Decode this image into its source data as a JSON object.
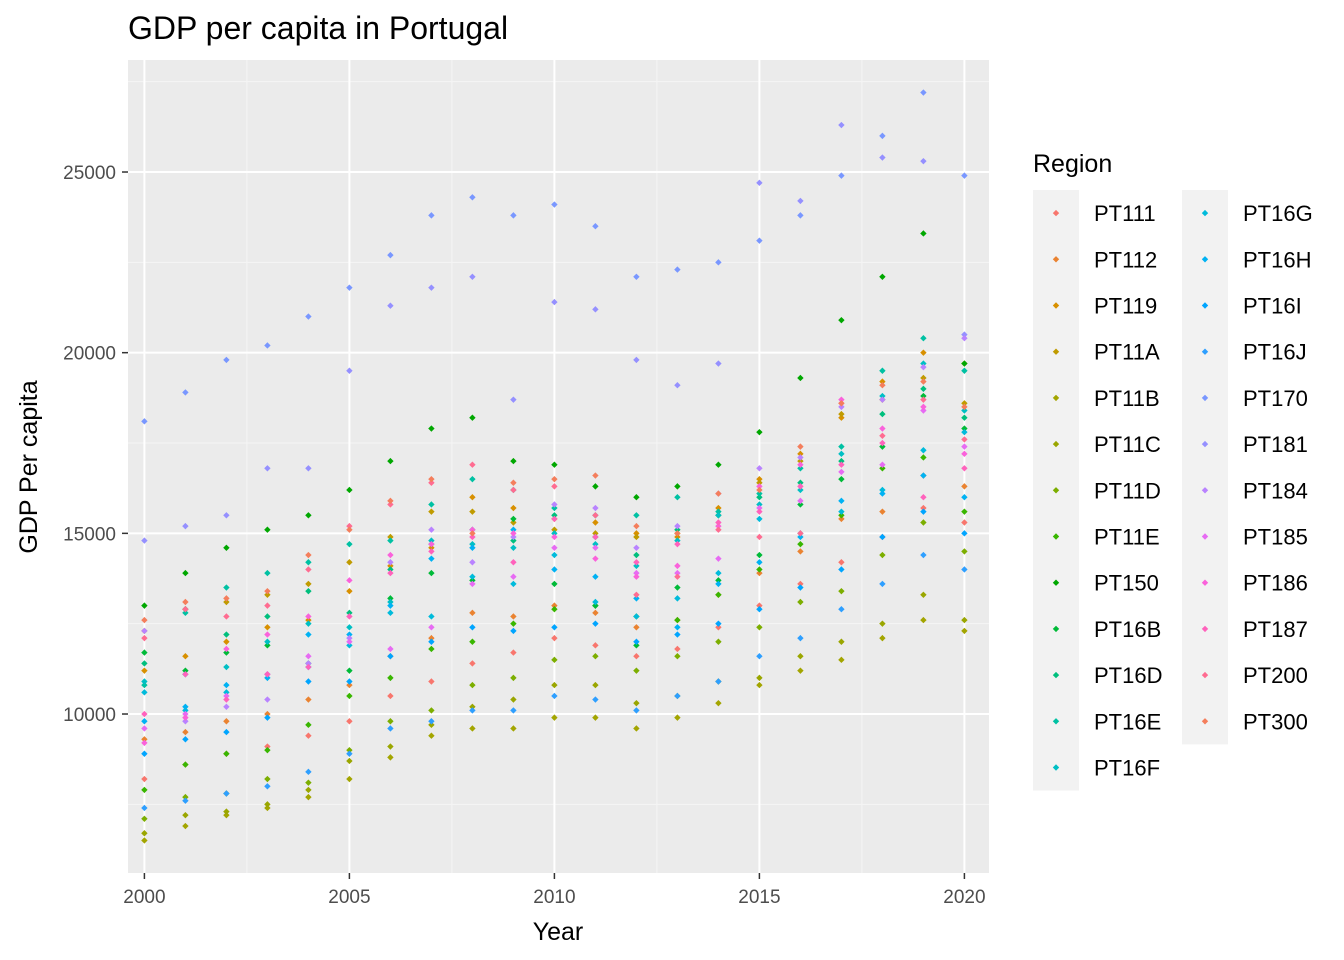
{
  "chart_data": {
    "type": "scatter",
    "title": "GDP per capita in Portugal",
    "xlabel": "Year",
    "ylabel": "GDP Per capita",
    "xlim": [
      1999.6,
      2020.6
    ],
    "ylim": [
      5600,
      28100
    ],
    "x_ticks": [
      2000,
      2005,
      2010,
      2015,
      2020
    ],
    "x_tick_labels": [
      "2000",
      "2005",
      "2010",
      "2015",
      "2020"
    ],
    "y_ticks": [
      10000,
      15000,
      20000,
      25000
    ],
    "y_tick_labels": [
      "10000",
      "15000",
      "20000",
      "25000"
    ],
    "grid": true,
    "legend_title": "Region",
    "legend_position": "right",
    "years": [
      2000,
      2001,
      2002,
      2003,
      2004,
      2005,
      2006,
      2007,
      2008,
      2009,
      2010,
      2011,
      2012,
      2013,
      2014,
      2015,
      2016,
      2017,
      2018,
      2019,
      2020
    ],
    "series": [
      {
        "name": "PT111",
        "color": "#F8766D",
        "values": [
          8200,
          8600,
          8900,
          9100,
          9400,
          9800,
          10500,
          10900,
          11400,
          11700,
          12100,
          11900,
          11600,
          11800,
          12400,
          13000,
          13600,
          14200,
          14900,
          15700,
          15300
        ]
      },
      {
        "name": "PT112",
        "color": "#EA8331",
        "values": [
          9300,
          9500,
          9800,
          10000,
          10400,
          10800,
          11600,
          12100,
          12800,
          12700,
          13000,
          12800,
          12400,
          12600,
          13300,
          13900,
          14500,
          15400,
          15600,
          16600,
          16300
        ]
      },
      {
        "name": "PT119",
        "color": "#D89000",
        "values": [
          11200,
          11600,
          12000,
          12400,
          12600,
          13400,
          14100,
          14600,
          16000,
          15700,
          15400,
          15300,
          15000,
          14900,
          15700,
          16500,
          17200,
          18200,
          19200,
          20000,
          19700
        ]
      },
      {
        "name": "PT11A",
        "color": "#C09B00",
        "values": [
          12300,
          12900,
          13100,
          13300,
          13600,
          14200,
          14900,
          15600,
          15600,
          15300,
          15100,
          15000,
          14900,
          15000,
          15500,
          16400,
          17000,
          18300,
          18700,
          19300,
          18600
        ]
      },
      {
        "name": "PT11B",
        "color": "#A3A500",
        "values": [
          6500,
          6900,
          7200,
          7400,
          7700,
          8200,
          8800,
          9400,
          9600,
          9600,
          9900,
          9900,
          9600,
          9900,
          10300,
          10800,
          11200,
          11500,
          12100,
          12600,
          12300
        ]
      },
      {
        "name": "PT11C",
        "color": "#9AA600",
        "values": [
          6700,
          7200,
          7300,
          7500,
          7900,
          8700,
          9100,
          9700,
          10200,
          10400,
          10800,
          10800,
          10300,
          10500,
          10900,
          11000,
          11600,
          12000,
          12500,
          13300,
          12600
        ]
      },
      {
        "name": "PT11D",
        "color": "#7CAE00",
        "values": [
          7100,
          7700,
          7800,
          8200,
          8100,
          9000,
          9800,
          10100,
          10800,
          11000,
          11500,
          11600,
          11200,
          11600,
          12000,
          12400,
          13100,
          13400,
          14400,
          15300,
          14500
        ]
      },
      {
        "name": "PT11E",
        "color": "#39B600",
        "values": [
          7900,
          8600,
          8900,
          9000,
          9700,
          10500,
          11000,
          11800,
          12000,
          12500,
          12900,
          13000,
          12700,
          12600,
          13300,
          14000,
          14700,
          15500,
          16800,
          17100,
          15600
        ]
      },
      {
        "name": "PT150",
        "color": "#00A700",
        "values": [
          13000,
          13900,
          14600,
          15100,
          15500,
          16200,
          17000,
          17900,
          18200,
          17000,
          16900,
          16300,
          16000,
          16300,
          16900,
          17800,
          19300,
          20900,
          22100,
          23300,
          19700
        ]
      },
      {
        "name": "PT16B",
        "color": "#00BA38",
        "values": [
          11700,
          11200,
          11700,
          11900,
          11400,
          11200,
          13200,
          13900,
          13700,
          15400,
          13600,
          13000,
          11900,
          13500,
          13700,
          14400,
          15800,
          16500,
          17400,
          18800,
          17900
        ]
      },
      {
        "name": "PT16D",
        "color": "#00BF7D",
        "values": [
          11400,
          12900,
          12200,
          12700,
          13400,
          12800,
          14000,
          14700,
          15100,
          14800,
          15500,
          14900,
          14400,
          15100,
          15500,
          16000,
          16400,
          17000,
          18300,
          19000,
          18200
        ]
      },
      {
        "name": "PT16E",
        "color": "#00C1A3",
        "values": [
          10800,
          12800,
          13500,
          13900,
          14200,
          14700,
          14800,
          15800,
          16500,
          16200,
          15700,
          15500,
          15500,
          16000,
          15600,
          16100,
          16800,
          17400,
          19500,
          20400,
          19500
        ]
      },
      {
        "name": "PT16F",
        "color": "#00BFC4",
        "values": [
          10900,
          11100,
          11300,
          12000,
          12500,
          12400,
          13100,
          14800,
          14700,
          14600,
          15000,
          14700,
          14100,
          14800,
          15500,
          15800,
          16200,
          17200,
          18800,
          19700,
          18400
        ]
      },
      {
        "name": "PT16G",
        "color": "#00BBDB",
        "values": [
          10600,
          10100,
          10600,
          11100,
          11300,
          11900,
          12800,
          12700,
          13800,
          13600,
          14400,
          13100,
          12700,
          13200,
          13900,
          15400,
          15000,
          15600,
          16200,
          17300,
          17800
        ]
      },
      {
        "name": "PT16H",
        "color": "#00B2F3",
        "values": [
          9800,
          10200,
          10800,
          11000,
          12200,
          12200,
          13000,
          14300,
          14600,
          15100,
          14000,
          13800,
          13200,
          12400,
          13600,
          14200,
          14900,
          15900,
          16100,
          16600,
          16000
        ]
      },
      {
        "name": "PT16I",
        "color": "#00A5FF",
        "values": [
          8900,
          9300,
          9500,
          9900,
          10900,
          10900,
          11600,
          12000,
          12400,
          12300,
          12400,
          12500,
          12000,
          12200,
          12500,
          12900,
          13500,
          14000,
          14900,
          15600,
          15000
        ]
      },
      {
        "name": "PT16J",
        "color": "#2E9FFF",
        "values": [
          7400,
          7600,
          7800,
          8000,
          8400,
          8900,
          9600,
          9800,
          10100,
          10100,
          10500,
          10400,
          10100,
          10500,
          10900,
          11600,
          12100,
          12900,
          13600,
          14400,
          14000
        ]
      },
      {
        "name": "PT170",
        "color": "#7997FF",
        "values": [
          18100,
          18900,
          19800,
          20200,
          21000,
          21800,
          22700,
          23800,
          24300,
          23800,
          24100,
          23500,
          22100,
          22300,
          22500,
          23100,
          23800,
          24900,
          26000,
          27200,
          24900
        ]
      },
      {
        "name": "PT181",
        "color": "#9590FF",
        "values": [
          14800,
          15200,
          15500,
          16800,
          16800,
          19500,
          21300,
          21800,
          22100,
          18700,
          21400,
          21200,
          19800,
          19100,
          19700,
          24700,
          24200,
          26300,
          25400,
          25300,
          20500
        ]
      },
      {
        "name": "PT184",
        "color": "#B983FF",
        "values": [
          12300,
          9800,
          10200,
          10400,
          11400,
          12100,
          14200,
          15100,
          14200,
          14900,
          15800,
          15700,
          14600,
          15200,
          16100,
          16800,
          17100,
          18500,
          18700,
          19600,
          20400
        ]
      },
      {
        "name": "PT185",
        "color": "#E76BF3",
        "values": [
          9600,
          10000,
          10500,
          11100,
          11600,
          12000,
          11800,
          12400,
          13600,
          13800,
          14600,
          14600,
          13900,
          13900,
          14300,
          15700,
          15900,
          16700,
          16900,
          18400,
          17400
        ]
      },
      {
        "name": "PT186",
        "color": "#FA62DB",
        "values": [
          9200,
          9900,
          11800,
          12200,
          12700,
          13700,
          14400,
          14700,
          15100,
          15000,
          14900,
          14300,
          13800,
          14100,
          15200,
          16300,
          16900,
          18700,
          17900,
          18500,
          17200
        ]
      },
      {
        "name": "PT187",
        "color": "#FF62BC",
        "values": [
          10000,
          11100,
          10400,
          11100,
          11300,
          12700,
          13900,
          14500,
          14900,
          14200,
          15400,
          14900,
          14200,
          14700,
          15300,
          15600,
          16300,
          16900,
          17500,
          16000,
          16800
        ]
      },
      {
        "name": "PT200",
        "color": "#FF6C91",
        "values": [
          12100,
          12900,
          12700,
          13000,
          14000,
          15200,
          15800,
          16400,
          16900,
          16200,
          16300,
          15500,
          13300,
          13800,
          15100,
          14900,
          15000,
          18600,
          17700,
          18700,
          17600
        ]
      },
      {
        "name": "PT300",
        "color": "#F47E5C",
        "values": [
          12600,
          13100,
          13200,
          13400,
          14400,
          15100,
          15900,
          16500,
          15000,
          16400,
          16500,
          16600,
          15200,
          15000,
          16100,
          16200,
          17400,
          18600,
          19100,
          19200,
          18500
        ]
      }
    ]
  }
}
